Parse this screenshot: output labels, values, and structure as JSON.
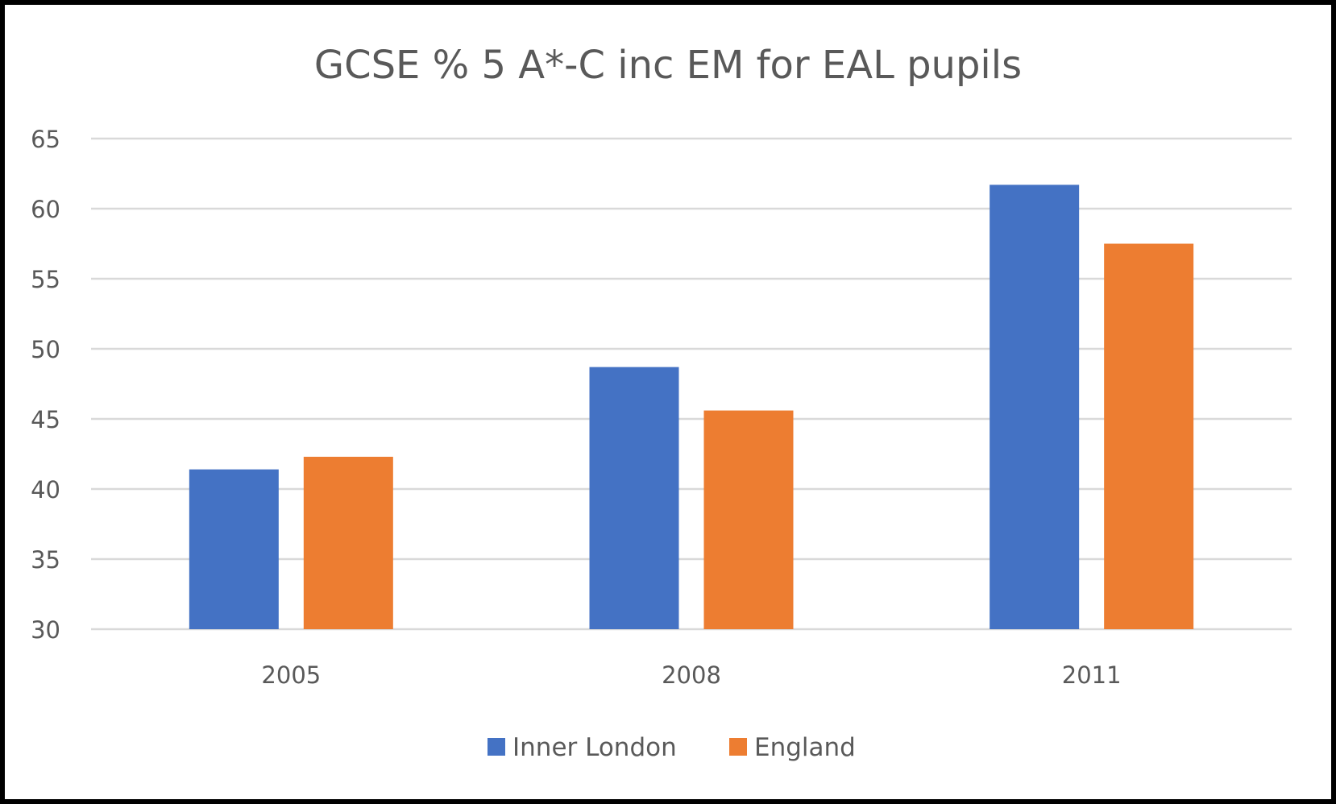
{
  "chart_data": {
    "type": "bar",
    "title": "GCSE % 5 A*-C inc EM for EAL pupils",
    "categories": [
      "2005",
      "2008",
      "2011"
    ],
    "series": [
      {
        "name": "Inner London",
        "values": [
          41.4,
          48.7,
          61.7
        ],
        "color": "#4472C4"
      },
      {
        "name": "England",
        "values": [
          42.3,
          45.6,
          57.5
        ],
        "color": "#ED7D31"
      }
    ],
    "xlabel": "",
    "ylabel": "",
    "ylim": [
      30,
      65
    ],
    "yticks": [
      "30",
      "35",
      "40",
      "45",
      "50",
      "55",
      "60",
      "65"
    ],
    "grid": true,
    "legend": "bottom"
  }
}
